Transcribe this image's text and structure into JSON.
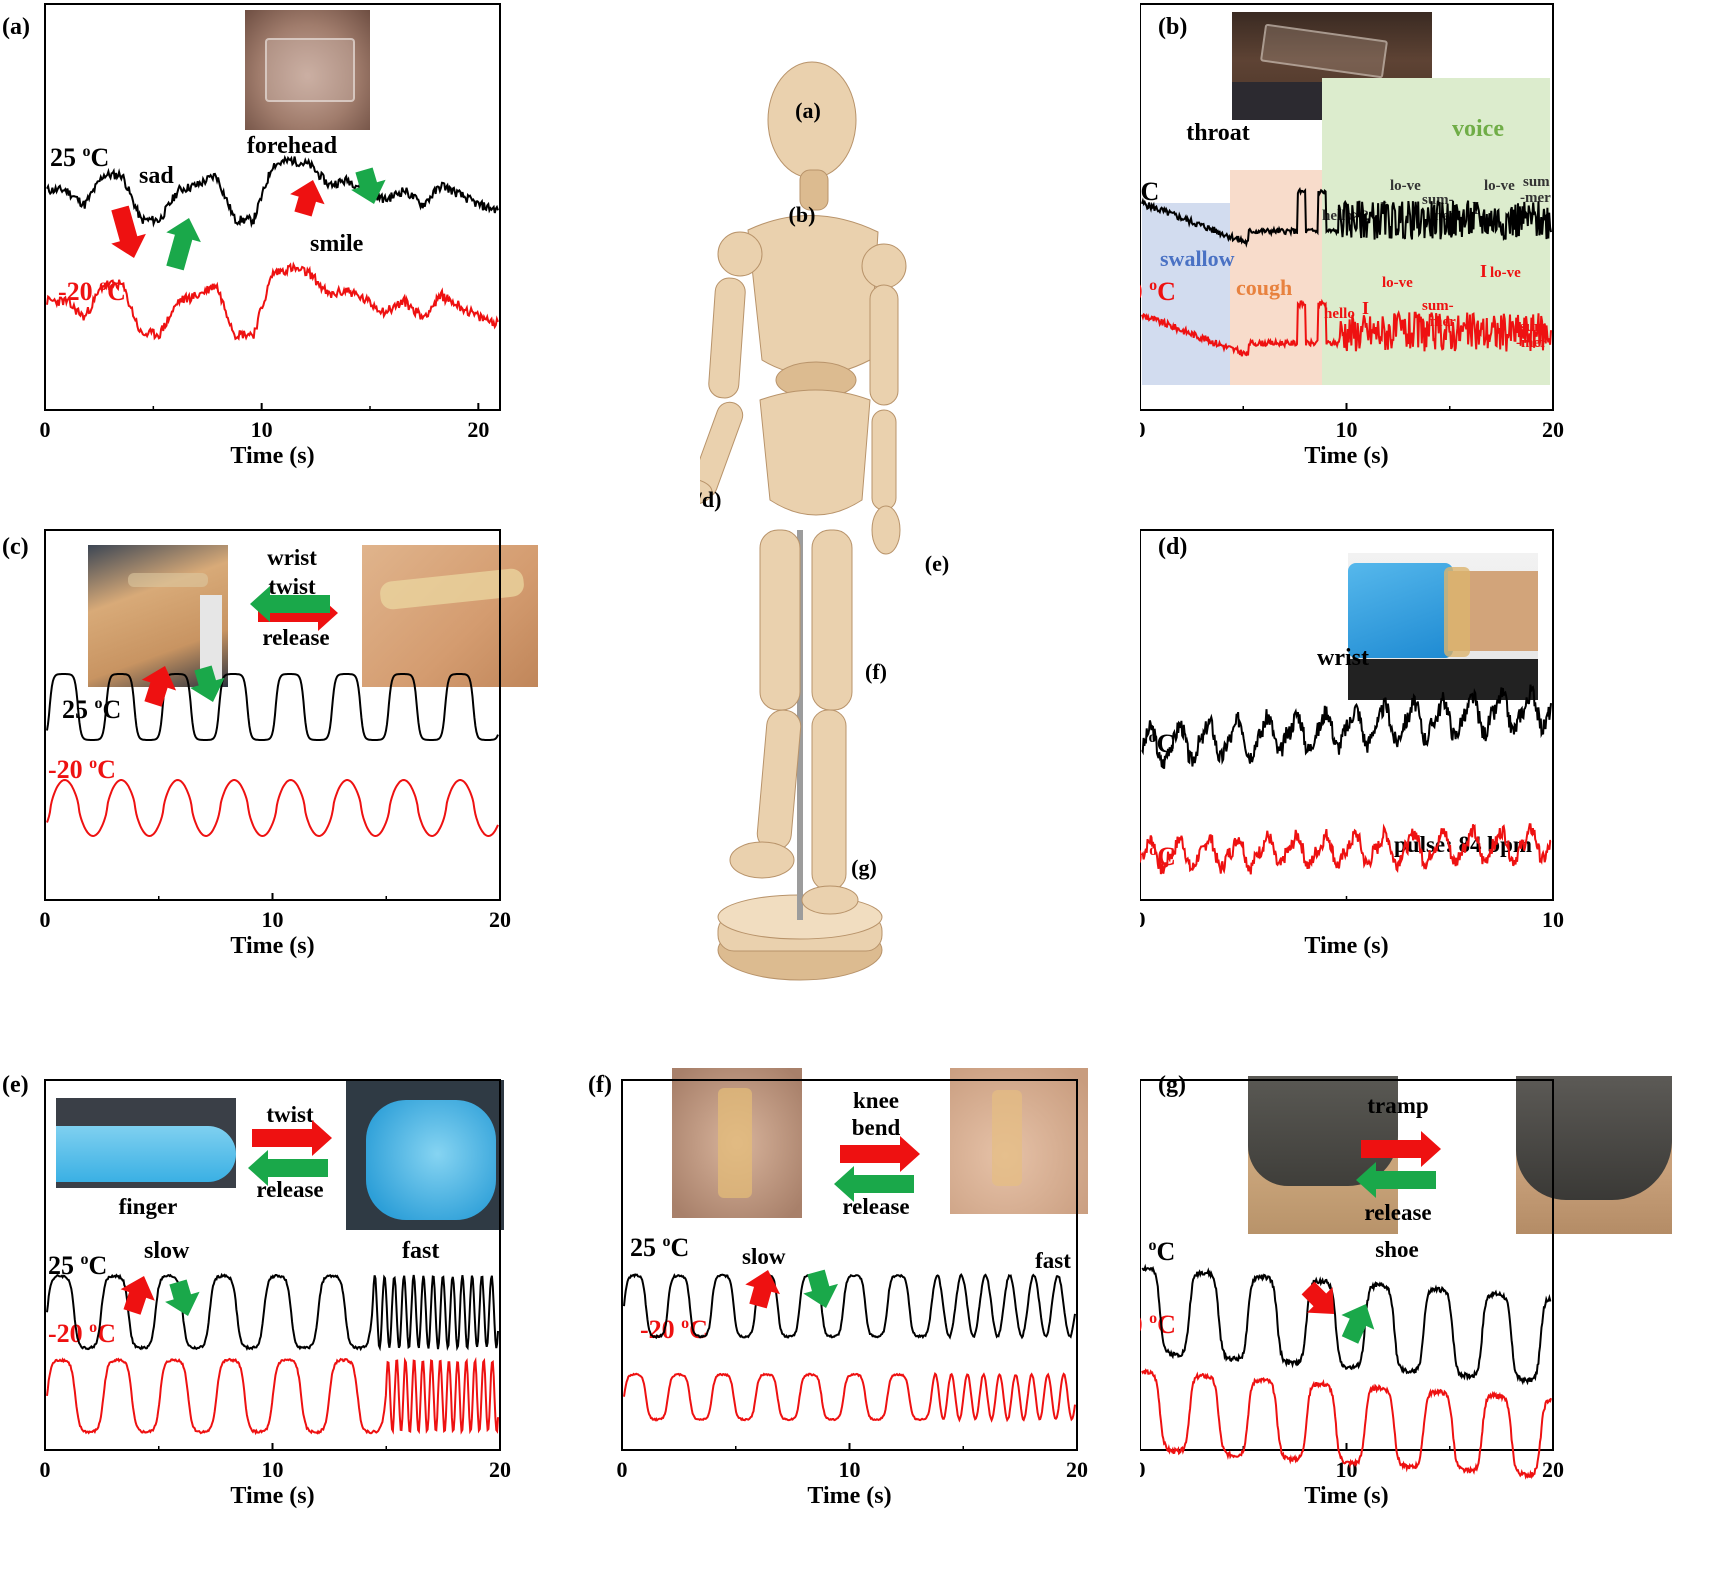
{
  "panel_labels": [
    "(a)",
    "(b)",
    "(c)",
    "(d)",
    "(e)",
    "(f)",
    "(g)"
  ],
  "mannequin": {
    "labels": {
      "a": "(a)",
      "b": "(b)",
      "cd": "(c/d)",
      "e": "(e)",
      "f": "(f)",
      "g": "(g)"
    }
  },
  "temps": {
    "warm": "25 ºC",
    "cold": "-20 ºC"
  },
  "colors": {
    "warm": "#000000",
    "cold": "#ee1111",
    "arrow_red": "#ee1111",
    "arrow_green": "#1aa84a",
    "swallow_bg": "#d2dcef",
    "cough_bg": "#f8dccb",
    "voice_bg": "#dceccd",
    "swallow_text": "#4a72c4",
    "cough_text": "#e8823f",
    "voice_text": "#70ad47"
  },
  "chart_data": [
    {
      "id": "a",
      "type": "line",
      "xlabel": "Time (s)",
      "xlim": [
        0,
        21
      ],
      "xticks": [
        0,
        10,
        20
      ],
      "annotations": {
        "location": "forehead",
        "sad": "sad",
        "smile": "smile"
      },
      "series": [
        {
          "name": "25 ºC",
          "pattern": "expression",
          "base": 0.62
        },
        {
          "name": "-20 ºC",
          "pattern": "expression",
          "base": 0.26
        }
      ]
    },
    {
      "id": "b",
      "type": "line",
      "xlabel": "Time (s)",
      "xlim": [
        0,
        20
      ],
      "xticks": [
        0,
        10,
        20
      ],
      "annotations": {
        "location": "throat",
        "swallow": "swallow",
        "cough": "cough",
        "voice": "voice",
        "hello2": "hello×2",
        "i": "I",
        "love": "lo-ve",
        "sum": "sum-",
        "mer": "mer",
        "summer": "sum",
        "summer2": "-mer",
        "hello": "hello"
      },
      "series": [
        {
          "name": "25 ºC",
          "pattern": "speech"
        },
        {
          "name": "-20 ºC",
          "pattern": "speech"
        }
      ]
    },
    {
      "id": "c",
      "type": "line",
      "xlabel": "Time (s)",
      "xlim": [
        0,
        20
      ],
      "xticks": [
        0,
        10,
        20
      ],
      "annotations": {
        "action1": "wrist",
        "action2": "twist",
        "release": "release"
      },
      "series": [
        {
          "name": "25 ºC",
          "pattern": "square",
          "cycles": 8
        },
        {
          "name": "-20 ºC",
          "pattern": "wave",
          "cycles": 8
        }
      ]
    },
    {
      "id": "d",
      "type": "line",
      "xlabel": "Time (s)",
      "xlim": [
        0,
        10
      ],
      "xticks": [
        0,
        10
      ],
      "annotations": {
        "location": "wrist",
        "pulse": "pulse: 84 bpm"
      },
      "series": [
        {
          "name": "25 ºC",
          "pattern": "pulse",
          "bpm": 84
        },
        {
          "name": "-20 ºC",
          "pattern": "pulse",
          "bpm": 84
        }
      ]
    },
    {
      "id": "e",
      "type": "line",
      "xlabel": "Time (s)",
      "xlim": [
        0,
        20
      ],
      "xticks": [
        0,
        10,
        20
      ],
      "annotations": {
        "location": "finger",
        "action": "twist",
        "release": "release",
        "slow": "slow",
        "fast": "fast"
      },
      "series": [
        {
          "name": "25 ºC",
          "pattern": "slowfast",
          "slow_cycles": 6,
          "fast_cycles": 13
        },
        {
          "name": "-20 ºC",
          "pattern": "slowfast",
          "slow_cycles": 6,
          "fast_cycles": 13
        }
      ]
    },
    {
      "id": "f",
      "type": "line",
      "xlabel": "Time (s)",
      "xlim": [
        0,
        20
      ],
      "xticks": [
        0,
        10,
        20
      ],
      "annotations": {
        "action1": "knee",
        "action2": "bend",
        "release": "release",
        "slow": "slow",
        "fast": "fast"
      },
      "series": [
        {
          "name": "25 ºC",
          "pattern": "slowfast",
          "slow_cycles": 7,
          "fast_cycles": 6
        },
        {
          "name": "-20 ºC",
          "pattern": "slowfast",
          "slow_cycles": 7,
          "fast_cycles": 9
        }
      ]
    },
    {
      "id": "g",
      "type": "line",
      "xlabel": "Time (s)",
      "xlim": [
        0,
        20
      ],
      "xticks": [
        0,
        10,
        20
      ],
      "annotations": {
        "location": "shoe",
        "action": "tramp",
        "release": "release"
      },
      "series": [
        {
          "name": "25 ºC",
          "pattern": "steps",
          "cycles": 7
        },
        {
          "name": "-20 ºC",
          "pattern": "steps",
          "cycles": 7
        }
      ]
    }
  ]
}
